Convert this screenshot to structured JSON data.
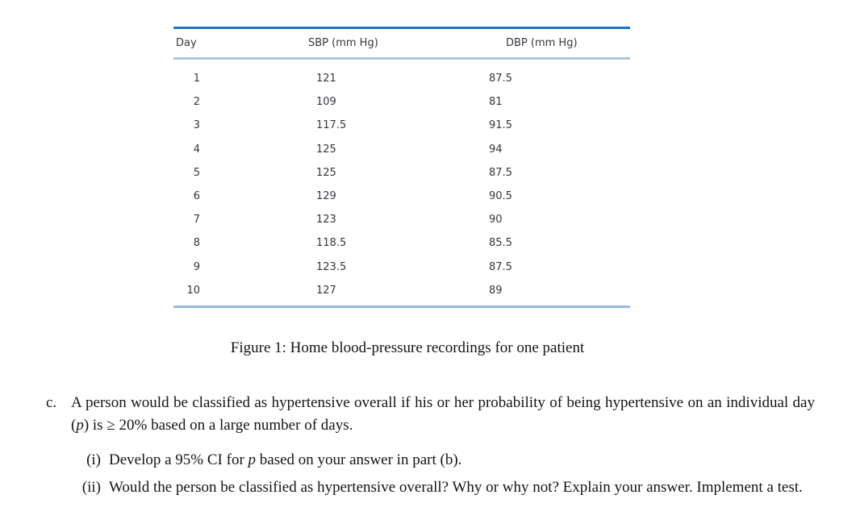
{
  "figure": {
    "table": {
      "headers": {
        "day": "Day",
        "sbp": "SBP (mm Hg)",
        "dbp": "DBP (mm Hg)"
      },
      "rows": [
        {
          "day": 1,
          "sbp": "121",
          "dbp": "87.5"
        },
        {
          "day": 2,
          "sbp": "109",
          "dbp": "81"
        },
        {
          "day": 3,
          "sbp": "117.5",
          "dbp": "91.5"
        },
        {
          "day": 4,
          "sbp": "125",
          "dbp": "94"
        },
        {
          "day": 5,
          "sbp": "125",
          "dbp": "87.5"
        },
        {
          "day": 6,
          "sbp": "129",
          "dbp": "90.5"
        },
        {
          "day": 7,
          "sbp": "123",
          "dbp": "90"
        },
        {
          "day": 8,
          "sbp": "118.5",
          "dbp": "85.5"
        },
        {
          "day": 9,
          "sbp": "123.5",
          "dbp": "87.5"
        },
        {
          "day": 10,
          "sbp": "127",
          "dbp": "89"
        }
      ]
    },
    "caption": "Figure 1: Home blood-pressure recordings for one patient"
  },
  "question": {
    "item_c": {
      "label": "c.",
      "text_part1": "A person would be classified as hypertensive overall if his or her probability of being hypertensive on an individual day (",
      "variable": "p",
      "text_part2": ") is ≥ 20% based on a large number of days."
    },
    "item_i": {
      "label": "(i)",
      "text_part1": "Develop a 95% CI for ",
      "variable": "p",
      "text_part2": " based on your answer in part (b)."
    },
    "item_ii": {
      "label": "(ii)",
      "text": "Would the person be classified as hypertensive overall? Why or why not? Explain your answer. Implement a test."
    }
  },
  "colors": {
    "rule_top": "#1c73be",
    "rule_header": "#a9c8e4",
    "rule_bottom": "#96bbdc",
    "table_text": "#33373c",
    "body_text": "#141414"
  }
}
